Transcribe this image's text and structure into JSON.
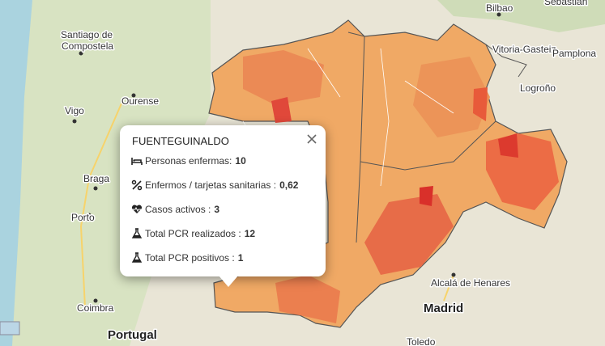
{
  "map": {
    "labels": [
      "Sebastián",
      "Bilbao",
      "Vitoria-Gasteiz",
      "Pamplona",
      "Logroño",
      "Santiago de",
      "Compostela",
      "Ourense",
      "Vigo",
      "Braga",
      "Porto",
      "Coimbra",
      "Alcalá de Henares",
      "Toledo"
    ],
    "country": "Portugal",
    "capital": "Madrid"
  },
  "popup": {
    "title": "FUENTEGUINALDO",
    "rows": [
      {
        "label": "Personas enfermas:",
        "value": "10"
      },
      {
        "label": "Enfermos / tarjetas sanitarias :",
        "value": "0,62"
      },
      {
        "label": "Casos activos :",
        "value": "3"
      },
      {
        "label": "Total PCR realizados :",
        "value": "12"
      },
      {
        "label": "Total PCR positivos :",
        "value": "1"
      }
    ]
  }
}
